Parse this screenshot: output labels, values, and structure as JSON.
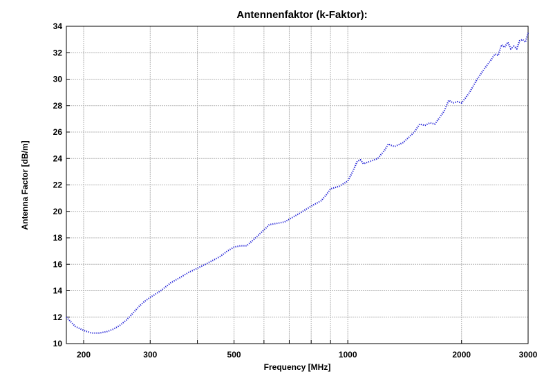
{
  "chart_data": {
    "type": "line",
    "title": "Antennenfaktor (k-Faktor):",
    "xlabel": "Frequency [MHz]",
    "ylabel": "Antenna Factor [dB/m]",
    "x_scale": "log",
    "xlim": [
      180,
      3000
    ],
    "ylim": [
      10,
      34
    ],
    "x_ticks": [
      {
        "value": 200,
        "label": "200"
      },
      {
        "value": 300,
        "label": "300"
      },
      {
        "value": 500,
        "label": "500"
      },
      {
        "value": 1000,
        "label": "1000"
      },
      {
        "value": 2000,
        "label": "2000"
      },
      {
        "value": 3000,
        "label": "3000"
      }
    ],
    "x_gridlines": [
      200,
      300,
      400,
      500,
      600,
      700,
      800,
      900,
      1000,
      2000,
      3000
    ],
    "y_ticks": [
      10,
      12,
      14,
      16,
      18,
      20,
      22,
      24,
      26,
      28,
      30,
      32,
      34
    ],
    "grid": true,
    "line_color": "#1f1fd6",
    "line_style": "dotted",
    "series": [
      {
        "x": [
          180,
          190,
          200,
          210,
          220,
          230,
          240,
          250,
          260,
          270,
          280,
          290,
          300,
          320,
          340,
          360,
          380,
          400,
          420,
          440,
          460,
          480,
          500,
          520,
          540,
          560,
          580,
          600,
          620,
          650,
          680,
          700,
          750,
          800,
          850,
          880,
          900,
          950,
          1000,
          1030,
          1060,
          1080,
          1100,
          1150,
          1200,
          1250,
          1280,
          1300,
          1330,
          1400,
          1450,
          1500,
          1550,
          1600,
          1650,
          1700,
          1750,
          1800,
          1850,
          1900,
          1950,
          2000,
          2050,
          2100,
          2200,
          2300,
          2400,
          2450,
          2500,
          2550,
          2600,
          2650,
          2700,
          2750,
          2800,
          2850,
          2900,
          2950,
          3000
        ],
        "y": [
          12.0,
          11.3,
          11.0,
          10.8,
          10.8,
          10.9,
          11.1,
          11.4,
          11.8,
          12.3,
          12.8,
          13.2,
          13.5,
          14.0,
          14.6,
          15.0,
          15.4,
          15.7,
          16.0,
          16.3,
          16.6,
          17.0,
          17.3,
          17.4,
          17.4,
          17.8,
          18.2,
          18.6,
          19.0,
          19.1,
          19.2,
          19.4,
          19.9,
          20.4,
          20.8,
          21.3,
          21.7,
          21.9,
          22.3,
          23.0,
          23.8,
          23.9,
          23.6,
          23.8,
          24.0,
          24.6,
          25.1,
          25.0,
          24.9,
          25.2,
          25.6,
          26.0,
          26.6,
          26.5,
          26.7,
          26.6,
          27.1,
          27.6,
          28.4,
          28.2,
          28.3,
          28.2,
          28.6,
          29.0,
          30.0,
          30.8,
          31.5,
          31.9,
          31.8,
          32.6,
          32.4,
          32.8,
          32.3,
          32.5,
          32.3,
          32.9,
          33.0,
          32.8,
          33.5
        ]
      }
    ]
  }
}
